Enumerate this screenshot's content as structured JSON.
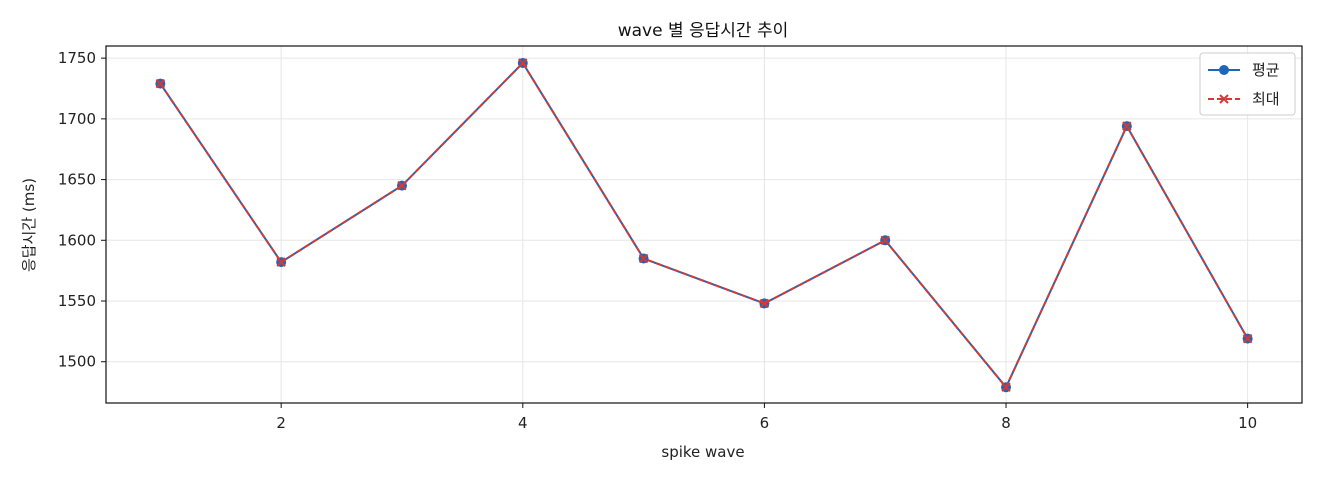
{
  "chart_data": {
    "type": "line",
    "title": "wave 별 응답시간 추이",
    "xlabel": "spike wave",
    "ylabel": "응답시간 (ms)",
    "x": [
      1,
      2,
      3,
      4,
      5,
      6,
      7,
      8,
      9,
      10
    ],
    "xlim": [
      0.55,
      10.45
    ],
    "ylim": [
      1466,
      1760
    ],
    "xticks": [
      2,
      4,
      6,
      8,
      10
    ],
    "yticks": [
      1500,
      1550,
      1600,
      1650,
      1700,
      1750
    ],
    "grid": true,
    "legend_position": "top-right",
    "series": [
      {
        "name": "평균",
        "values": [
          1729,
          1582,
          1645,
          1746,
          1585,
          1548,
          1600,
          1479,
          1694,
          1519
        ],
        "color": "#1f66b8",
        "marker": "circle",
        "line_style": "solid"
      },
      {
        "name": "최대",
        "values": [
          1729,
          1582,
          1645,
          1746,
          1585,
          1548,
          1600,
          1479,
          1694,
          1519
        ],
        "color": "#d33a35",
        "marker": "x",
        "line_style": "dashed"
      }
    ]
  }
}
